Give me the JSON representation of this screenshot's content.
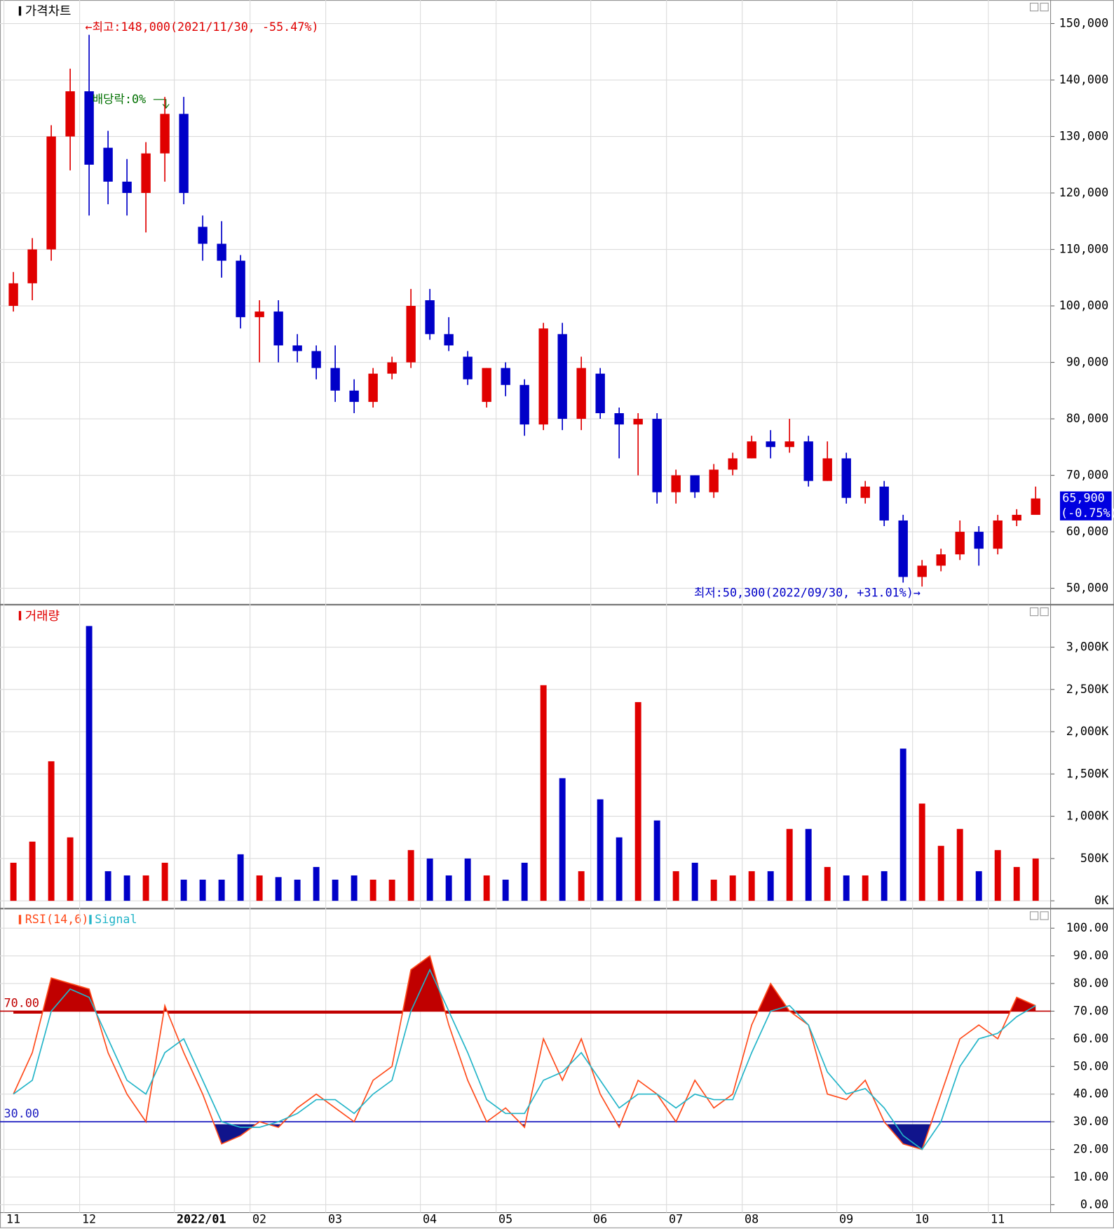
{
  "chart_data": [
    {
      "type": "candlestick",
      "title": "가격차트",
      "categories": [
        "11",
        null,
        null,
        null,
        "12",
        null,
        null,
        null,
        null,
        "2022/01",
        null,
        null,
        null,
        "02",
        null,
        null,
        null,
        "03",
        null,
        null,
        null,
        null,
        "04",
        null,
        null,
        null,
        "05",
        null,
        null,
        null,
        null,
        "06",
        null,
        null,
        null,
        "07",
        null,
        null,
        null,
        "08",
        null,
        null,
        null,
        null,
        "09",
        null,
        null,
        null,
        "10",
        null,
        null,
        null,
        "11",
        null,
        null
      ],
      "open": [
        100000,
        104000,
        110000,
        130000,
        138000,
        128000,
        122000,
        120000,
        127000,
        134000,
        114000,
        111000,
        108000,
        98000,
        99000,
        93000,
        92000,
        89000,
        85000,
        83000,
        88000,
        90000,
        101000,
        95000,
        91000,
        83000,
        89000,
        86000,
        79000,
        95000,
        80000,
        88000,
        81000,
        79000,
        80000,
        67000,
        70000,
        67000,
        71000,
        73000,
        76000,
        75000,
        76000,
        69000,
        73000,
        66000,
        68000,
        62000,
        52000,
        54000,
        56000,
        60000,
        57000,
        62000,
        63000
      ],
      "high": [
        106000,
        112000,
        132000,
        142000,
        148000,
        131000,
        126000,
        129000,
        137000,
        137000,
        116000,
        115000,
        109000,
        101000,
        101000,
        95000,
        93000,
        93000,
        87000,
        89000,
        91000,
        103000,
        103000,
        98000,
        92000,
        89000,
        90000,
        87000,
        97000,
        97000,
        91000,
        89000,
        82000,
        81000,
        81000,
        71000,
        70000,
        72000,
        74000,
        77000,
        78000,
        80000,
        77000,
        76000,
        74000,
        69000,
        69000,
        63000,
        55000,
        57000,
        62000,
        61000,
        63000,
        64000,
        68000
      ],
      "low": [
        99000,
        101000,
        108000,
        124000,
        116000,
        118000,
        116000,
        113000,
        122000,
        118000,
        108000,
        105000,
        96000,
        90000,
        90000,
        90000,
        87000,
        83000,
        81000,
        82000,
        87000,
        89000,
        94000,
        92000,
        86000,
        82000,
        84000,
        77000,
        78000,
        78000,
        78000,
        80000,
        73000,
        70000,
        65000,
        65000,
        66000,
        66000,
        70000,
        73000,
        73000,
        74000,
        68000,
        69000,
        65000,
        65000,
        61000,
        51000,
        50300,
        53000,
        55000,
        54000,
        56000,
        61000,
        64000
      ],
      "close": [
        104000,
        110000,
        130000,
        138000,
        125000,
        122000,
        120000,
        127000,
        134000,
        120000,
        111000,
        108000,
        98000,
        99000,
        93000,
        92000,
        89000,
        85000,
        83000,
        88000,
        90000,
        100000,
        95000,
        93000,
        87000,
        89000,
        86000,
        79000,
        96000,
        80000,
        89000,
        81000,
        79000,
        80000,
        67000,
        70000,
        67000,
        71000,
        73000,
        76000,
        75000,
        76000,
        69000,
        73000,
        66000,
        68000,
        62000,
        52000,
        54000,
        56000,
        60000,
        57000,
        62000,
        63000,
        65900
      ],
      "up_color": "#e00000",
      "down_color": "#0000c8",
      "ylim": [
        48000,
        153000
      ],
      "yticks": [
        {
          "value": 50000,
          "label": "50,000"
        },
        {
          "value": 60000,
          "label": "60,000"
        },
        {
          "value": 70000,
          "label": "70,000"
        },
        {
          "value": 80000,
          "label": "80,000"
        },
        {
          "value": 90000,
          "label": "90,000"
        },
        {
          "value": 100000,
          "label": "100,000"
        },
        {
          "value": 110000,
          "label": "110,000"
        },
        {
          "value": 120000,
          "label": "120,000"
        },
        {
          "value": 130000,
          "label": "130,000"
        },
        {
          "value": 140000,
          "label": "140,000"
        },
        {
          "value": 150000,
          "label": "150,000"
        }
      ],
      "annotations": [
        "←최고:148,000(2021/11/30, -55.47%)",
        "배당락:0%",
        "최저:50,300(2022/09/30, +31.01%)→"
      ],
      "last_price": {
        "value": 65900,
        "label": "65,900"
      },
      "change_label": "(-0.75%)"
    },
    {
      "type": "bar",
      "title": "거래량",
      "values": [
        450,
        700,
        1650,
        750,
        3250,
        350,
        300,
        300,
        450,
        250,
        250,
        250,
        550,
        300,
        280,
        250,
        400,
        250,
        300,
        250,
        250,
        600,
        500,
        300,
        500,
        300,
        250,
        450,
        2550,
        1450,
        350,
        1200,
        750,
        2350,
        950,
        350,
        450,
        250,
        300,
        350,
        350,
        850,
        850,
        400,
        300,
        300,
        350,
        1800,
        1150,
        650,
        850,
        350,
        600,
        400,
        500
      ],
      "up_color": "#e00000",
      "down_color": "#0000c8",
      "ylim": [
        0,
        3400
      ],
      "yticks": [
        {
          "value": 0,
          "label": "0K"
        },
        {
          "value": 500,
          "label": "500K"
        },
        {
          "value": 1000,
          "label": "1,000K"
        },
        {
          "value": 1500,
          "label": "1,500K"
        },
        {
          "value": 2000,
          "label": "2,000K"
        },
        {
          "value": 2500,
          "label": "2,500K"
        },
        {
          "value": 3000,
          "label": "3,000K"
        }
      ]
    },
    {
      "type": "line",
      "series": [
        {
          "name": "RSI(14,6)",
          "color": "#ff4a1a",
          "values": [
            40,
            55,
            82,
            80,
            78,
            55,
            40,
            30,
            72,
            55,
            40,
            22,
            25,
            30,
            28,
            35,
            40,
            35,
            30,
            45,
            50,
            85,
            90,
            65,
            45,
            30,
            35,
            28,
            60,
            45,
            60,
            40,
            28,
            45,
            40,
            30,
            45,
            35,
            40,
            65,
            80,
            70,
            65,
            40,
            38,
            45,
            30,
            22,
            20,
            40,
            60,
            65,
            60,
            75,
            72
          ]
        },
        {
          "name": "Signal",
          "color": "#22b4c8",
          "values": [
            40,
            45,
            70,
            78,
            75,
            60,
            45,
            40,
            55,
            60,
            45,
            30,
            28,
            28,
            30,
            33,
            38,
            38,
            33,
            40,
            45,
            70,
            85,
            70,
            55,
            38,
            33,
            33,
            45,
            48,
            55,
            45,
            35,
            40,
            40,
            35,
            40,
            38,
            38,
            55,
            70,
            72,
            65,
            48,
            40,
            42,
            35,
            25,
            20,
            30,
            50,
            60,
            62,
            68,
            72
          ]
        }
      ],
      "levels": [
        {
          "value": 70,
          "label": "70.00",
          "color": "#c00000"
        },
        {
          "value": 30,
          "label": "30.00",
          "color": "#1c1cc0"
        }
      ],
      "ylim": [
        0,
        100
      ],
      "yticks": [
        {
          "value": 0,
          "label": "0.00"
        },
        {
          "value": 10,
          "label": "10.00"
        },
        {
          "value": 20,
          "label": "20.00"
        },
        {
          "value": 30,
          "label": "30.00"
        },
        {
          "value": 40,
          "label": "40.00"
        },
        {
          "value": 50,
          "label": "50.00"
        },
        {
          "value": 60,
          "label": "60.00"
        },
        {
          "value": 70,
          "label": "70.00"
        },
        {
          "value": 80,
          "label": "80.00"
        },
        {
          "value": 90,
          "label": "90.00"
        },
        {
          "value": 100,
          "label": "100.00"
        }
      ]
    }
  ]
}
